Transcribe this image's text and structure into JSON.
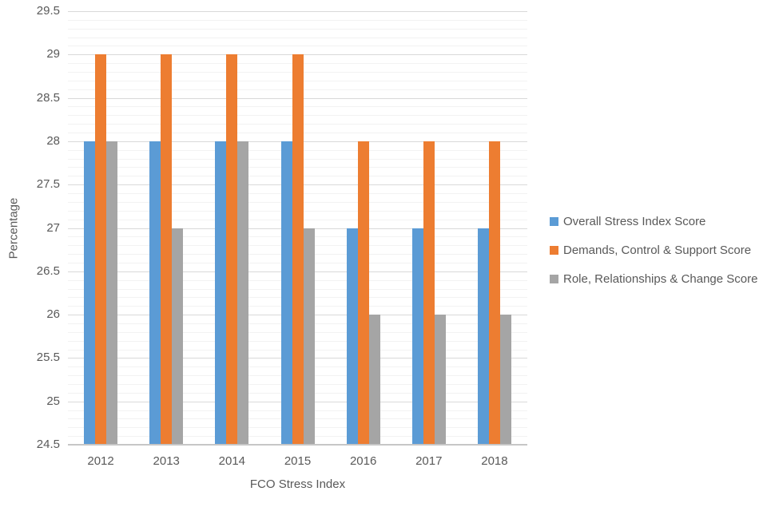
{
  "chart_data": {
    "type": "bar",
    "title": "",
    "xlabel": "FCO Stress Index",
    "ylabel": "Percentage",
    "categories": [
      "2012",
      "2013",
      "2014",
      "2015",
      "2016",
      "2017",
      "2018"
    ],
    "series": [
      {
        "name": "Overall Stress Index Score",
        "color": "#5B9BD5",
        "values": [
          28,
          28,
          28,
          28,
          27,
          27,
          27
        ]
      },
      {
        "name": "Demands, Control & Support Score",
        "color": "#ED7D31",
        "values": [
          29,
          29,
          29,
          29,
          28,
          28,
          28
        ]
      },
      {
        "name": "Role, Relationships & Change Score",
        "color": "#A5A5A5",
        "values": [
          28,
          27,
          28,
          27,
          26,
          26,
          26
        ]
      }
    ],
    "ylim": [
      24.5,
      29.5
    ],
    "y_major_step": 0.5,
    "y_minor_step": 0.1,
    "y_tick_labels": [
      "29.5",
      "29",
      "28.5",
      "28",
      "27.5",
      "27",
      "26.5",
      "26",
      "25.5",
      "25",
      "24.5"
    ],
    "legend_position": "right",
    "grid": true
  },
  "theme": {
    "text_color": "#595959",
    "major_grid_color": "#D9D9D9",
    "minor_grid_color": "#F2F2F2",
    "axis_line_color": "#C6C6C6",
    "background": "#FFFFFF"
  }
}
